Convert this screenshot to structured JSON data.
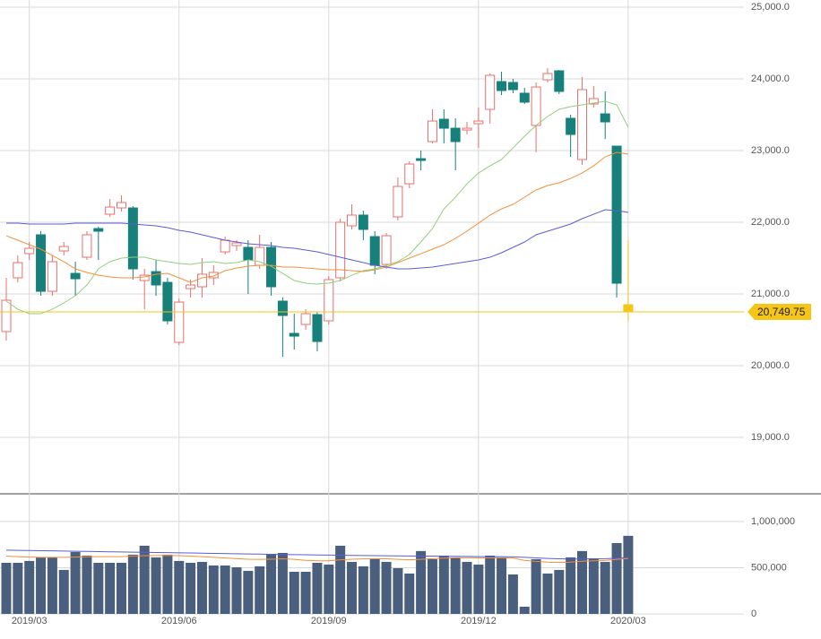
{
  "chart_data": [
    {
      "type": "candlestick",
      "ylim": [
        18200,
        25100
      ],
      "yticks": [
        {
          "value": 19000,
          "label": "19,000.0"
        },
        {
          "value": 20000,
          "label": "20,000.0"
        },
        {
          "value": 21000,
          "label": "21,000.0"
        },
        {
          "value": 22000,
          "label": "22,000.0"
        },
        {
          "value": 23000,
          "label": "23,000.0"
        },
        {
          "value": 24000,
          "label": "24,000.0"
        },
        {
          "value": 25000,
          "label": "25,000.0"
        }
      ],
      "grid": true,
      "up_color": "#e8706f",
      "down_color": "#17807a",
      "last_color": "#f5c518",
      "last_price": {
        "value": 20749.75,
        "label": "20,749.75"
      },
      "open": [
        20475,
        21225,
        21562,
        21825,
        21037,
        21600,
        21287,
        21512,
        21912,
        22112,
        22200,
        22200,
        21187,
        21312,
        21162,
        20325,
        21075,
        21100,
        21225,
        21587,
        21675,
        21650,
        21400,
        21650,
        20900,
        20450,
        20575,
        20712,
        20625,
        21225,
        21950,
        22100,
        21800,
        21412,
        22075,
        22537,
        22887,
        23125,
        23437,
        23312,
        23287,
        23375,
        23575,
        23962,
        23950,
        23800,
        23350,
        23987,
        24112,
        23450,
        22875,
        23650,
        23512,
        23062,
        20850
      ],
      "high": [
        21225,
        21537,
        21725,
        21875,
        21537,
        21725,
        21450,
        21875,
        21937,
        22325,
        22375,
        22225,
        21350,
        21475,
        21225,
        20937,
        21200,
        21500,
        21400,
        21800,
        21750,
        21750,
        21825,
        21725,
        20950,
        20725,
        20787,
        20750,
        21250,
        22050,
        22250,
        22162,
        21875,
        21850,
        22625,
        22850,
        23000,
        23575,
        23575,
        23450,
        23400,
        23600,
        24075,
        24100,
        24000,
        23875,
        23950,
        24150,
        24125,
        23500,
        24025,
        23900,
        23825,
        23000,
        21750
      ],
      "low": [
        20350,
        21162,
        21475,
        20975,
        20975,
        21537,
        20975,
        21475,
        21475,
        22075,
        22150,
        21200,
        20787,
        20975,
        20575,
        20287,
        20950,
        20950,
        21125,
        21550,
        21600,
        21000,
        21350,
        20975,
        20125,
        20225,
        20500,
        20200,
        20575,
        21175,
        21900,
        21750,
        21275,
        21350,
        22025,
        22475,
        22725,
        23100,
        23100,
        22725,
        23225,
        23037,
        23375,
        23775,
        23800,
        23650,
        22975,
        23950,
        23787,
        22912,
        22800,
        23600,
        23162,
        20950,
        20625
      ],
      "close": [
        20912,
        21437,
        21637,
        21037,
        21450,
        21662,
        21212,
        21825,
        21875,
        22212,
        22275,
        21350,
        21262,
        21125,
        20625,
        20887,
        21125,
        21275,
        21300,
        21750,
        21712,
        21475,
        21650,
        21100,
        20700,
        20412,
        20725,
        20337,
        21200,
        22000,
        22100,
        21900,
        21400,
        21812,
        22500,
        22812,
        22862,
        23412,
        23312,
        23125,
        23312,
        23412,
        24050,
        23837,
        23850,
        23675,
        23887,
        24075,
        23825,
        23225,
        23850,
        23725,
        23400,
        21150,
        20750
      ],
      "series": [
        {
          "color": "#8fd17a",
          "values": [
            20900,
            20787,
            20725,
            20725,
            20787,
            20875,
            20975,
            21125,
            21350,
            21450,
            21500,
            21512,
            21512,
            21475,
            21450,
            21425,
            21412,
            21437,
            21450,
            21425,
            21437,
            21475,
            21450,
            21387,
            21287,
            21187,
            21150,
            21137,
            21150,
            21187,
            21262,
            21325,
            21350,
            21400,
            21450,
            21550,
            21725,
            21912,
            22187,
            22350,
            22537,
            22687,
            22787,
            22875,
            23037,
            23200,
            23350,
            23475,
            23575,
            23612,
            23637,
            23662,
            23687,
            23637,
            23325
          ]
        },
        {
          "color": "#f0913a",
          "values": [
            21812,
            21750,
            21687,
            21625,
            21537,
            21450,
            21350,
            21300,
            21262,
            21237,
            21225,
            21225,
            21237,
            21275,
            21287,
            21225,
            21162,
            21225,
            21250,
            21325,
            21362,
            21387,
            21400,
            21400,
            21375,
            21375,
            21362,
            21350,
            21337,
            21337,
            21325,
            21312,
            21337,
            21375,
            21437,
            21500,
            21562,
            21625,
            21687,
            21775,
            21875,
            21987,
            22100,
            22187,
            22250,
            22350,
            22450,
            22512,
            22550,
            22612,
            22687,
            22787,
            22912,
            22975,
            22950
          ]
        },
        {
          "color": "#5c5cd6",
          "values": [
            21987,
            21987,
            21975,
            21975,
            21975,
            21975,
            21987,
            21987,
            21987,
            21987,
            21987,
            21975,
            21962,
            21950,
            21925,
            21887,
            21862,
            21825,
            21787,
            21750,
            21725,
            21700,
            21687,
            21675,
            21650,
            21637,
            21612,
            21587,
            21550,
            21512,
            21475,
            21437,
            21400,
            21375,
            21350,
            21350,
            21362,
            21375,
            21400,
            21425,
            21450,
            21475,
            21512,
            21575,
            21650,
            21725,
            21825,
            21875,
            21925,
            21975,
            22050,
            22112,
            22175,
            22162,
            22137
          ]
        }
      ]
    },
    {
      "type": "bar",
      "categories": [
        null,
        null,
        "2019/03",
        null,
        null,
        null,
        null,
        null,
        null,
        null,
        null,
        null,
        null,
        null,
        null,
        "2019/06",
        null,
        null,
        null,
        null,
        null,
        null,
        null,
        null,
        null,
        null,
        null,
        null,
        "2019/09",
        null,
        null,
        null,
        null,
        null,
        null,
        null,
        null,
        null,
        null,
        null,
        null,
        "2019/12",
        null,
        null,
        null,
        null,
        null,
        null,
        null,
        null,
        null,
        null,
        null,
        null,
        "2020/03"
      ],
      "ylim": [
        0,
        1290000
      ],
      "yticks": [
        0,
        {
          "value": 500000,
          "label": "500,000"
        },
        {
          "value": 1000000,
          "label": "1,000,000"
        }
      ],
      "grid": true,
      "color": "#4a5f7e",
      "values": [
        553000,
        553000,
        573000,
        612000,
        612000,
        476000,
        670000,
        631000,
        553000,
        553000,
        553000,
        641000,
        738000,
        612000,
        641000,
        573000,
        553000,
        563000,
        524000,
        524000,
        505000,
        466000,
        515000,
        650000,
        660000,
        456000,
        456000,
        553000,
        534000,
        738000,
        563000,
        515000,
        592000,
        563000,
        495000,
        437000,
        680000,
        592000,
        631000,
        612000,
        563000,
        534000,
        631000,
        612000,
        427000,
        78000,
        592000,
        437000,
        476000,
        612000,
        680000,
        602000,
        563000,
        767000,
        845000
      ],
      "series": [
        {
          "color": "#5c5cd6",
          "values": [
            690000,
            688000,
            686000,
            684000,
            682000,
            680000,
            678000,
            676000,
            674000,
            672000,
            670000,
            668000,
            667000,
            665000,
            663000,
            661000,
            659000,
            657000,
            655000,
            653000,
            651000,
            649000,
            647000,
            645000,
            643000,
            641000,
            640000,
            638000,
            636000,
            635000,
            633000,
            632000,
            630000,
            629000,
            628000,
            627000,
            626000,
            625000,
            624000,
            623000,
            622000,
            621000,
            620000,
            619000,
            617000,
            612000,
            606000,
            600000,
            596000,
            594000,
            594000,
            596000,
            598000,
            603000,
            610000
          ]
        },
        {
          "color": "#f0913a",
          "values": [
            625000,
            620000,
            615000,
            612000,
            612000,
            612000,
            615000,
            618000,
            620000,
            620000,
            620000,
            625000,
            630000,
            632000,
            633000,
            630000,
            625000,
            620000,
            612000,
            605000,
            598000,
            592000,
            590000,
            592000,
            596000,
            590000,
            580000,
            575000,
            575000,
            585000,
            592000,
            595000,
            597000,
            596000,
            590000,
            585000,
            590000,
            598000,
            604000,
            608000,
            608000,
            606000,
            606000,
            606000,
            604000,
            580000,
            568000,
            560000,
            556000,
            560000,
            570000,
            575000,
            578000,
            590000,
            600000
          ]
        }
      ]
    }
  ]
}
